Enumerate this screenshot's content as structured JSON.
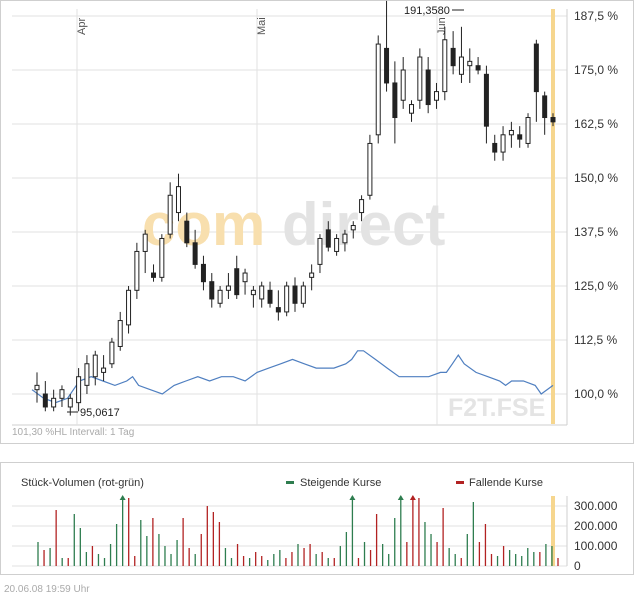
{
  "footer": {
    "date": "20.06.08",
    "time": "19:59 Uhr"
  },
  "chart_data": [
    {
      "type": "candlestick",
      "ticker": "F2T.FSE",
      "watermark": "comdirect",
      "info_text": "101,30 %HL   Intervall: 1 Tag",
      "y_tick_labels": [
        "187,5 %",
        "175,0 %",
        "162,5 %",
        "150,0 %",
        "137,5 %",
        "125,0 %",
        "112,5 %",
        "100,0 %"
      ],
      "ylim": [
        93,
        190
      ],
      "x_tick_labels": [
        "Apr",
        "Mai",
        "Jun"
      ],
      "max_label": "191,3580",
      "min_label": "95,0617",
      "max_value": 191.358,
      "min_value": 95.0617,
      "candles": [
        {
          "o": 101,
          "h": 105,
          "l": 98,
          "c": 102
        },
        {
          "o": 100,
          "h": 103,
          "l": 96,
          "c": 97
        },
        {
          "o": 97,
          "h": 101,
          "l": 96,
          "c": 99
        },
        {
          "o": 99,
          "h": 102,
          "l": 97,
          "c": 101
        },
        {
          "o": 97,
          "h": 100,
          "l": 95,
          "c": 99
        },
        {
          "o": 98,
          "h": 106,
          "l": 96,
          "c": 104
        },
        {
          "o": 102,
          "h": 109,
          "l": 100,
          "c": 107
        },
        {
          "o": 104,
          "h": 110,
          "l": 102,
          "c": 109
        },
        {
          "o": 105,
          "h": 109,
          "l": 103,
          "c": 106
        },
        {
          "o": 107,
          "h": 113,
          "l": 106,
          "c": 112
        },
        {
          "o": 111,
          "h": 119,
          "l": 110,
          "c": 117
        },
        {
          "o": 116,
          "h": 125,
          "l": 114,
          "c": 124
        },
        {
          "o": 124,
          "h": 135,
          "l": 122,
          "c": 133
        },
        {
          "o": 133,
          "h": 138,
          "l": 128,
          "c": 137
        },
        {
          "o": 128,
          "h": 130,
          "l": 126,
          "c": 127
        },
        {
          "o": 127,
          "h": 137,
          "l": 126,
          "c": 136
        },
        {
          "o": 137,
          "h": 149,
          "l": 136,
          "c": 146
        },
        {
          "o": 142,
          "h": 151,
          "l": 140,
          "c": 148
        },
        {
          "o": 140,
          "h": 142,
          "l": 134,
          "c": 135
        },
        {
          "o": 135,
          "h": 138,
          "l": 129,
          "c": 130
        },
        {
          "o": 130,
          "h": 132,
          "l": 124,
          "c": 126
        },
        {
          "o": 126,
          "h": 128,
          "l": 120,
          "c": 122
        },
        {
          "o": 121,
          "h": 125,
          "l": 120,
          "c": 124
        },
        {
          "o": 124,
          "h": 128,
          "l": 122,
          "c": 125
        },
        {
          "o": 129,
          "h": 132,
          "l": 122,
          "c": 123
        },
        {
          "o": 126,
          "h": 129,
          "l": 123,
          "c": 128
        },
        {
          "o": 123,
          "h": 125,
          "l": 120,
          "c": 124
        },
        {
          "o": 122,
          "h": 126,
          "l": 120,
          "c": 125
        },
        {
          "o": 124,
          "h": 126,
          "l": 120,
          "c": 121
        },
        {
          "o": 120,
          "h": 124,
          "l": 117,
          "c": 119
        },
        {
          "o": 119,
          "h": 126,
          "l": 118,
          "c": 125
        },
        {
          "o": 125,
          "h": 127,
          "l": 119,
          "c": 121
        },
        {
          "o": 121,
          "h": 126,
          "l": 120,
          "c": 125
        },
        {
          "o": 127,
          "h": 130,
          "l": 124,
          "c": 128
        },
        {
          "o": 130,
          "h": 137,
          "l": 128,
          "c": 136
        },
        {
          "o": 138,
          "h": 140,
          "l": 133,
          "c": 134
        },
        {
          "o": 133,
          "h": 137,
          "l": 132,
          "c": 136
        },
        {
          "o": 135,
          "h": 138,
          "l": 133,
          "c": 137
        },
        {
          "o": 138,
          "h": 140,
          "l": 136,
          "c": 139
        },
        {
          "o": 142,
          "h": 146,
          "l": 140,
          "c": 145
        },
        {
          "o": 146,
          "h": 160,
          "l": 145,
          "c": 158
        },
        {
          "o": 160,
          "h": 183,
          "l": 158,
          "c": 181
        },
        {
          "o": 180,
          "h": 191,
          "l": 170,
          "c": 172
        },
        {
          "o": 172,
          "h": 177,
          "l": 158,
          "c": 164
        },
        {
          "o": 168,
          "h": 178,
          "l": 166,
          "c": 175
        },
        {
          "o": 165,
          "h": 168,
          "l": 163,
          "c": 167
        },
        {
          "o": 168,
          "h": 180,
          "l": 166,
          "c": 178
        },
        {
          "o": 175,
          "h": 178,
          "l": 165,
          "c": 167
        },
        {
          "o": 168,
          "h": 172,
          "l": 166,
          "c": 170
        },
        {
          "o": 170,
          "h": 185,
          "l": 168,
          "c": 182
        },
        {
          "o": 180,
          "h": 184,
          "l": 174,
          "c": 176
        },
        {
          "o": 174,
          "h": 185,
          "l": 172,
          "c": 178
        },
        {
          "o": 176,
          "h": 180,
          "l": 172,
          "c": 177
        },
        {
          "o": 176,
          "h": 178,
          "l": 174,
          "c": 175
        },
        {
          "o": 174,
          "h": 176,
          "l": 158,
          "c": 162
        },
        {
          "o": 158,
          "h": 160,
          "l": 154,
          "c": 156
        },
        {
          "o": 156,
          "h": 162,
          "l": 154,
          "c": 160
        },
        {
          "o": 160,
          "h": 163,
          "l": 157,
          "c": 161
        },
        {
          "o": 160,
          "h": 162,
          "l": 157,
          "c": 159
        },
        {
          "o": 158,
          "h": 165,
          "l": 157,
          "c": 164
        },
        {
          "o": 181,
          "h": 182,
          "l": 163,
          "c": 170
        },
        {
          "o": 169,
          "h": 170,
          "l": 160,
          "c": 164
        },
        {
          "o": 164,
          "h": 165,
          "l": 162,
          "c": 163
        }
      ],
      "comparison_line": [
        {
          "x": 0,
          "y": 101
        },
        {
          "x": 2,
          "y": 99
        },
        {
          "x": 4,
          "y": 98
        },
        {
          "x": 6,
          "y": 99
        },
        {
          "x": 8,
          "y": 103
        },
        {
          "x": 10,
          "y": 104
        },
        {
          "x": 12,
          "y": 103
        },
        {
          "x": 14,
          "y": 102
        },
        {
          "x": 16,
          "y": 103
        },
        {
          "x": 17,
          "y": 104
        },
        {
          "x": 18,
          "y": 102
        },
        {
          "x": 20,
          "y": 101
        },
        {
          "x": 22,
          "y": 100
        },
        {
          "x": 24,
          "y": 102
        },
        {
          "x": 26,
          "y": 103
        },
        {
          "x": 28,
          "y": 104
        },
        {
          "x": 30,
          "y": 103
        },
        {
          "x": 32,
          "y": 104
        },
        {
          "x": 34,
          "y": 104
        },
        {
          "x": 36,
          "y": 103
        },
        {
          "x": 38,
          "y": 105
        },
        {
          "x": 40,
          "y": 106
        },
        {
          "x": 42,
          "y": 107
        },
        {
          "x": 44,
          "y": 108
        },
        {
          "x": 46,
          "y": 107
        },
        {
          "x": 48,
          "y": 106
        },
        {
          "x": 49,
          "y": 106
        },
        {
          "x": 51,
          "y": 106
        },
        {
          "x": 53,
          "y": 107
        },
        {
          "x": 54,
          "y": 108
        },
        {
          "x": 55,
          "y": 110
        },
        {
          "x": 56,
          "y": 110
        },
        {
          "x": 58,
          "y": 108
        },
        {
          "x": 60,
          "y": 106
        },
        {
          "x": 62,
          "y": 104
        },
        {
          "x": 64,
          "y": 104
        },
        {
          "x": 65,
          "y": 104
        },
        {
          "x": 67,
          "y": 104
        },
        {
          "x": 69,
          "y": 105
        },
        {
          "x": 70,
          "y": 105
        },
        {
          "x": 71,
          "y": 107
        },
        {
          "x": 72,
          "y": 109
        },
        {
          "x": 73,
          "y": 107
        },
        {
          "x": 75,
          "y": 105
        },
        {
          "x": 77,
          "y": 104
        },
        {
          "x": 79,
          "y": 103
        },
        {
          "x": 80,
          "y": 102
        },
        {
          "x": 81,
          "y": 103
        },
        {
          "x": 83,
          "y": 103
        },
        {
          "x": 85,
          "y": 102
        },
        {
          "x": 86,
          "y": 100
        },
        {
          "x": 88,
          "y": 102
        }
      ],
      "colors": {
        "candle": "#222222",
        "comparison": "#4f7fc0",
        "today_marker": "#f6d68e",
        "watermark_a": "#f8dfae",
        "watermark_b": "#e3e3e3",
        "ticker": "#e4e4e4"
      }
    },
    {
      "type": "bar",
      "title": "Stück-Volumen (rot-grün)",
      "legend": [
        {
          "label": "Steigende Kurse",
          "color": "#2e7d4f"
        },
        {
          "label": "Fallende Kurse",
          "color": "#b22222"
        }
      ],
      "y_tick_labels": [
        "300.000",
        "200.000",
        "100.000",
        "0"
      ],
      "ylim": [
        0,
        350000
      ],
      "values": [
        {
          "v": 120000,
          "up": true
        },
        {
          "v": 80000,
          "up": false
        },
        {
          "v": 90000,
          "up": true
        },
        {
          "v": 280000,
          "up": false
        },
        {
          "v": 40000,
          "up": true
        },
        {
          "v": 40000,
          "up": false
        },
        {
          "v": 260000,
          "up": true
        },
        {
          "v": 190000,
          "up": true
        },
        {
          "v": 70000,
          "up": true
        },
        {
          "v": 100000,
          "up": false
        },
        {
          "v": 60000,
          "up": true
        },
        {
          "v": 40000,
          "up": true
        },
        {
          "v": 110000,
          "up": true
        },
        {
          "v": 210000,
          "up": true
        },
        {
          "v": 350000,
          "up": true
        },
        {
          "v": 340000,
          "up": false
        },
        {
          "v": 50000,
          "up": false
        },
        {
          "v": 230000,
          "up": true
        },
        {
          "v": 150000,
          "up": true
        },
        {
          "v": 240000,
          "up": false
        },
        {
          "v": 160000,
          "up": true
        },
        {
          "v": 100000,
          "up": true
        },
        {
          "v": 60000,
          "up": true
        },
        {
          "v": 130000,
          "up": true
        },
        {
          "v": 240000,
          "up": false
        },
        {
          "v": 90000,
          "up": false
        },
        {
          "v": 60000,
          "up": true
        },
        {
          "v": 160000,
          "up": false
        },
        {
          "v": 300000,
          "up": false
        },
        {
          "v": 270000,
          "up": false
        },
        {
          "v": 220000,
          "up": false
        },
        {
          "v": 90000,
          "up": true
        },
        {
          "v": 40000,
          "up": true
        },
        {
          "v": 110000,
          "up": false
        },
        {
          "v": 50000,
          "up": false
        },
        {
          "v": 40000,
          "up": true
        },
        {
          "v": 70000,
          "up": false
        },
        {
          "v": 50000,
          "up": false
        },
        {
          "v": 30000,
          "up": true
        },
        {
          "v": 60000,
          "up": true
        },
        {
          "v": 80000,
          "up": true
        },
        {
          "v": 40000,
          "up": false
        },
        {
          "v": 70000,
          "up": false
        },
        {
          "v": 110000,
          "up": true
        },
        {
          "v": 90000,
          "up": false
        },
        {
          "v": 110000,
          "up": false
        },
        {
          "v": 60000,
          "up": true
        },
        {
          "v": 70000,
          "up": false
        },
        {
          "v": 40000,
          "up": true
        },
        {
          "v": 40000,
          "up": false
        },
        {
          "v": 100000,
          "up": true
        },
        {
          "v": 170000,
          "up": true
        },
        {
          "v": 350000,
          "up": true
        },
        {
          "v": 40000,
          "up": false
        },
        {
          "v": 120000,
          "up": true
        },
        {
          "v": 80000,
          "up": false
        },
        {
          "v": 260000,
          "up": false
        },
        {
          "v": 110000,
          "up": true
        },
        {
          "v": 60000,
          "up": true
        },
        {
          "v": 240000,
          "up": true
        },
        {
          "v": 350000,
          "up": true
        },
        {
          "v": 120000,
          "up": false
        },
        {
          "v": 360000,
          "up": false
        },
        {
          "v": 340000,
          "up": false
        },
        {
          "v": 220000,
          "up": true
        },
        {
          "v": 160000,
          "up": true
        },
        {
          "v": 120000,
          "up": false
        },
        {
          "v": 290000,
          "up": false
        },
        {
          "v": 90000,
          "up": true
        },
        {
          "v": 60000,
          "up": true
        },
        {
          "v": 40000,
          "up": false
        },
        {
          "v": 160000,
          "up": true
        },
        {
          "v": 320000,
          "up": true
        },
        {
          "v": 120000,
          "up": false
        },
        {
          "v": 210000,
          "up": false
        },
        {
          "v": 60000,
          "up": false
        },
        {
          "v": 50000,
          "up": true
        },
        {
          "v": 100000,
          "up": false
        },
        {
          "v": 80000,
          "up": true
        },
        {
          "v": 60000,
          "up": true
        },
        {
          "v": 50000,
          "up": true
        },
        {
          "v": 90000,
          "up": true
        },
        {
          "v": 70000,
          "up": true
        },
        {
          "v": 70000,
          "up": false
        },
        {
          "v": 110000,
          "up": true
        },
        {
          "v": 100000,
          "up": true
        },
        {
          "v": 40000,
          "up": false
        }
      ]
    }
  ]
}
